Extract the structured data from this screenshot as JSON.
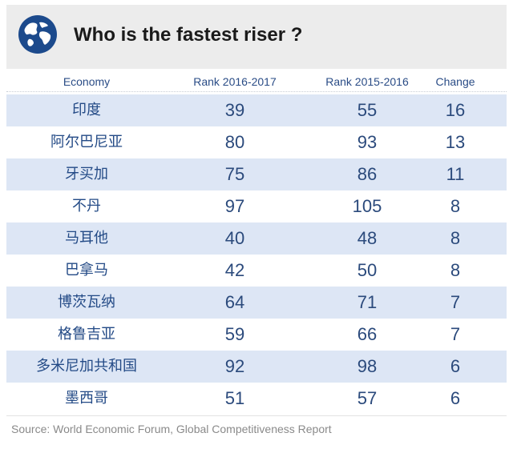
{
  "header": {
    "title": "Who is the fastest riser ?",
    "icon": "globe-icon"
  },
  "chart_data": {
    "type": "table",
    "title": "Who is the fastest riser ?",
    "columns": [
      "Economy",
      "Rank 2016-2017",
      "Rank 2015-2016",
      "Change"
    ],
    "rows": [
      [
        "印度",
        "39",
        "55",
        "16"
      ],
      [
        "阿尔巴尼亚",
        "80",
        "93",
        "13"
      ],
      [
        "牙买加",
        "75",
        "86",
        "11"
      ],
      [
        "不丹",
        "97",
        "105",
        "8"
      ],
      [
        "马耳他",
        "40",
        "48",
        "8"
      ],
      [
        "巴拿马",
        "42",
        "50",
        "8"
      ],
      [
        "博茨瓦纳",
        "64",
        "71",
        "7"
      ],
      [
        "格鲁吉亚",
        "59",
        "66",
        "7"
      ],
      [
        "多米尼加共和国",
        "92",
        "98",
        "6"
      ],
      [
        "墨西哥",
        "51",
        "57",
        "6"
      ]
    ],
    "source": "Source: World Economic Forum, Global Competitiveness Report"
  },
  "colors": {
    "header_bg": "#ececec",
    "stripe": "#dde6f5",
    "text_blue": "#234a86",
    "globe": "#1c4a8c"
  }
}
